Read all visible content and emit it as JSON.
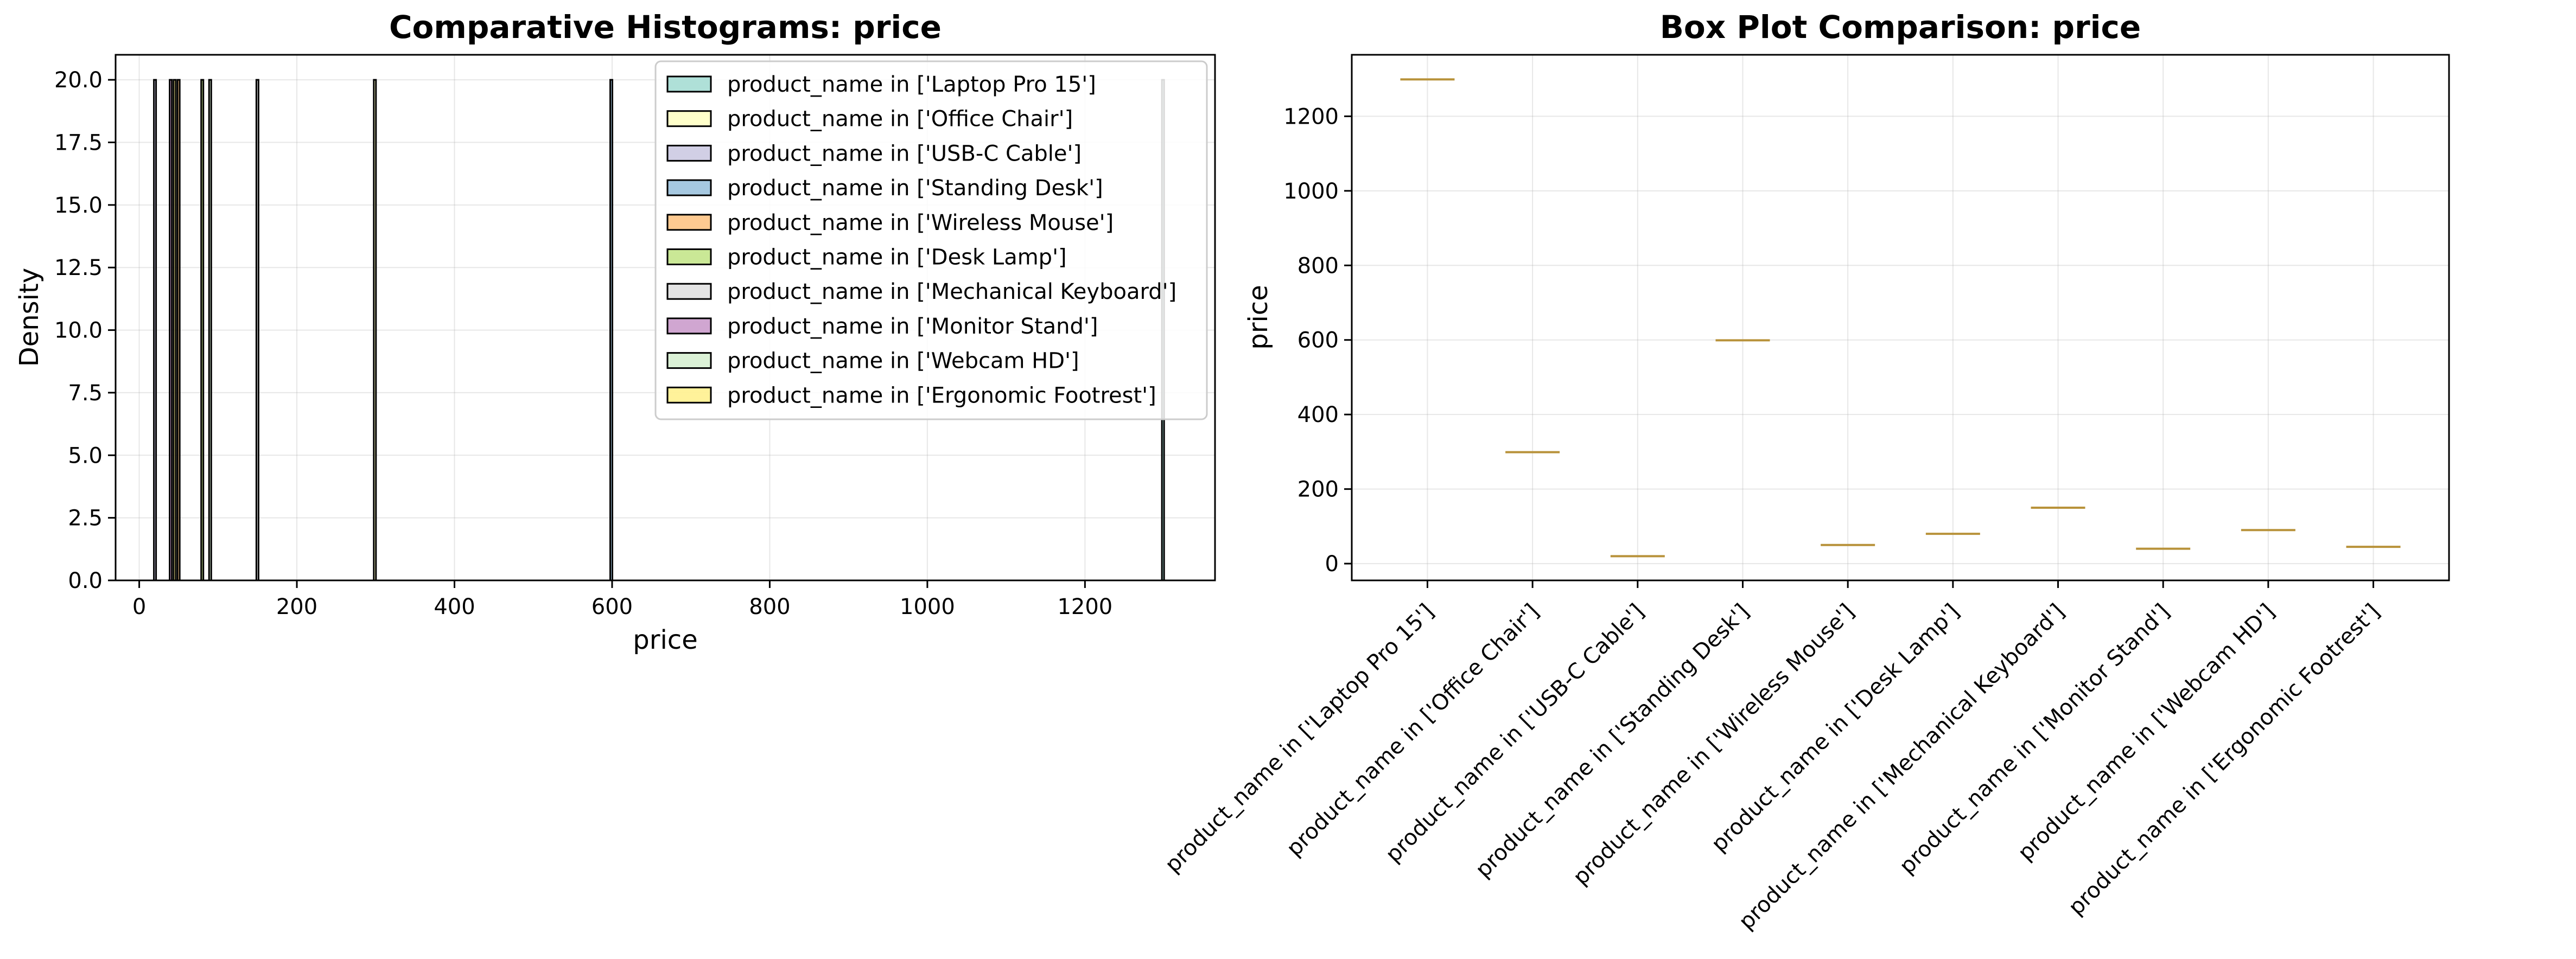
{
  "chart_data": [
    {
      "type": "histogram",
      "title": "Comparative Histograms: price",
      "xlabel": "price",
      "ylabel": "Density",
      "xlim": [
        -30,
        1365
      ],
      "ylim": [
        0,
        21
      ],
      "xticks": [
        0,
        200,
        400,
        600,
        800,
        1000,
        1200
      ],
      "yticks": [
        0.0,
        2.5,
        5.0,
        7.5,
        10.0,
        12.5,
        15.0,
        17.5,
        20.0
      ],
      "xtick_labels": [
        "0",
        "200",
        "400",
        "600",
        "800",
        "1000",
        "1200"
      ],
      "ytick_labels": [
        "0.0",
        "2.5",
        "5.0",
        "7.5",
        "10.0",
        "12.5",
        "15.0",
        "17.5",
        "20.0"
      ],
      "grid": true,
      "legend_position": "upper right",
      "series": [
        {
          "name": "product_name in ['Laptop Pro 15']",
          "value": 1299,
          "density": 20,
          "color": "#8dd3c7"
        },
        {
          "name": "product_name in ['Office Chair']",
          "value": 299,
          "density": 20,
          "color": "#ffffb3"
        },
        {
          "name": "product_name in ['USB-C Cable']",
          "value": 19.99,
          "density": 20,
          "color": "#bebada"
        },
        {
          "name": "product_name in ['Standing Desk']",
          "value": 599,
          "density": 20,
          "color": "#80b1d3"
        },
        {
          "name": "product_name in ['Wireless Mouse']",
          "value": 49.99,
          "density": 20,
          "color": "#fdb462"
        },
        {
          "name": "product_name in ['Desk Lamp']",
          "value": 79.99,
          "density": 20,
          "color": "#b3de69"
        },
        {
          "name": "product_name in ['Mechanical Keyboard']",
          "value": 149.99,
          "density": 20,
          "color": "#d9d9d9"
        },
        {
          "name": "product_name in ['Monitor Stand']",
          "value": 39.99,
          "density": 20,
          "color": "#bc80bd"
        },
        {
          "name": "product_name in ['Webcam HD']",
          "value": 89.99,
          "density": 20,
          "color": "#ccebc5"
        },
        {
          "name": "product_name in ['Ergonomic Footrest']",
          "value": 44.99,
          "density": 20,
          "color": "#ffed6f"
        }
      ]
    },
    {
      "type": "box",
      "title": "Box Plot Comparison: price",
      "xlabel": "",
      "ylabel": "price",
      "ylim": [
        -45,
        1365
      ],
      "yticks": [
        0,
        200,
        400,
        600,
        800,
        1000,
        1200
      ],
      "ytick_labels": [
        "0",
        "200",
        "400",
        "600",
        "800",
        "1000",
        "1200"
      ],
      "grid": true,
      "median_color": "#b8923a",
      "categories": [
        "product_name in ['Laptop Pro 15']",
        "product_name in ['Office Chair']",
        "product_name in ['USB-C Cable']",
        "product_name in ['Standing Desk']",
        "product_name in ['Wireless Mouse']",
        "product_name in ['Desk Lamp']",
        "product_name in ['Mechanical Keyboard']",
        "product_name in ['Monitor Stand']",
        "product_name in ['Webcam HD']",
        "product_name in ['Ergonomic Footrest']"
      ],
      "values": [
        1299,
        299,
        19.99,
        599,
        49.99,
        79.99,
        149.99,
        39.99,
        89.99,
        44.99
      ]
    }
  ]
}
